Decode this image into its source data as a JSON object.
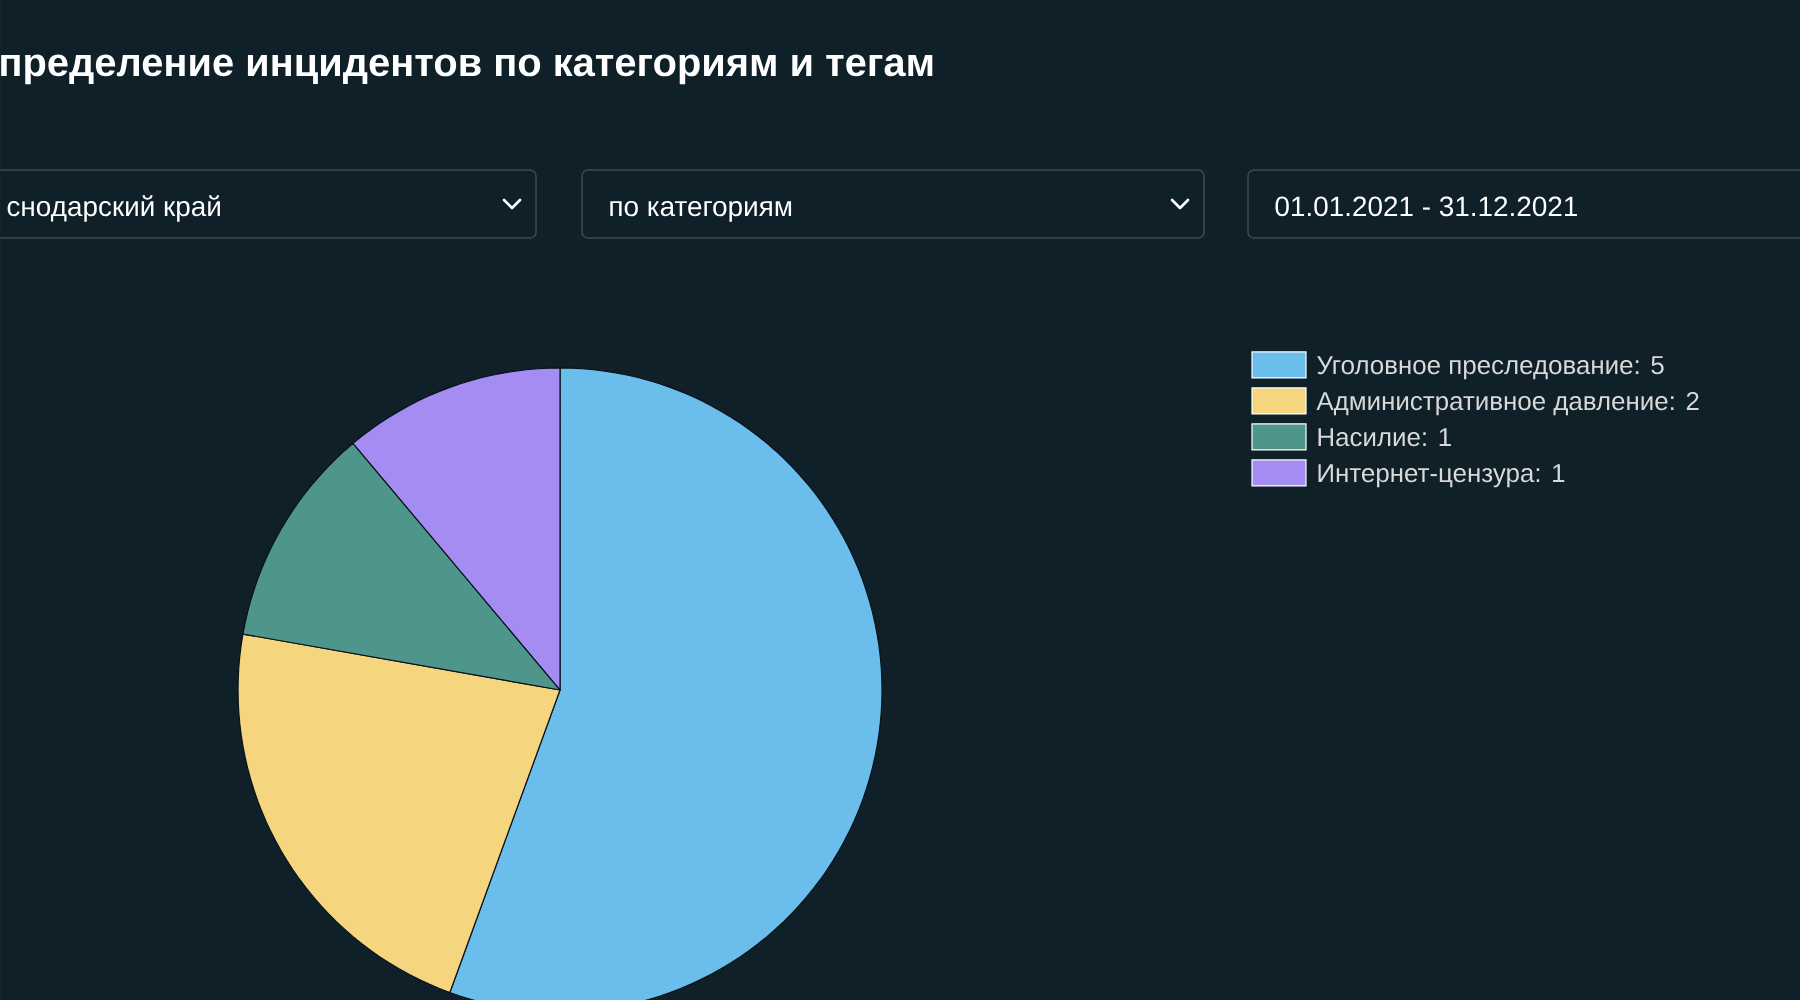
{
  "chart_data": {
    "type": "pie",
    "title": "пределение инцидентов по категориям и тегам",
    "categories": [
      "Уголовное преследование: 5",
      "Административное давление: 2",
      "Насилие: 1",
      "Интернет-цензура: 1"
    ],
    "values": [
      5,
      2,
      1,
      1
    ],
    "colors": [
      "#6bbdec",
      "#f5d57e",
      "#4e968c",
      "#a48cf2"
    ],
    "legend": "right",
    "annotations": [
      "снодарский край",
      "по категориям",
      "01.01.2021 - 31.12.2021"
    ]
  }
}
